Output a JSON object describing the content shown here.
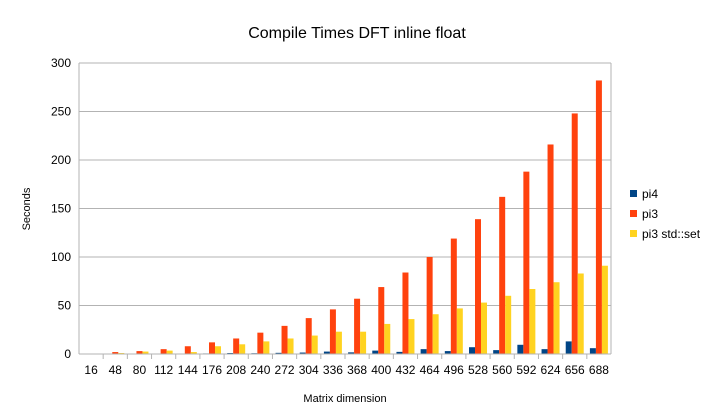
{
  "chart_data": {
    "type": "bar",
    "title": "Compile Times DFT inline float",
    "xlabel": "Matrix dimension",
    "ylabel": "Seconds",
    "ylim": [
      0,
      300
    ],
    "yticks": [
      0,
      50,
      100,
      150,
      200,
      250,
      300
    ],
    "grid": "horizontal",
    "legend_position": "right",
    "categories": [
      "16",
      "48",
      "80",
      "112",
      "144",
      "176",
      "208",
      "240",
      "272",
      "304",
      "336",
      "368",
      "400",
      "432",
      "464",
      "496",
      "528",
      "560",
      "592",
      "624",
      "656",
      "688"
    ],
    "series": [
      {
        "name": "pi4",
        "color": "#004586",
        "values": [
          0.1,
          0.2,
          0.3,
          0.4,
          0.5,
          0.6,
          1.0,
          0.8,
          1.2,
          1.5,
          2.5,
          1.7,
          3.5,
          2.2,
          5.0,
          3.0,
          7.0,
          4.0,
          9.5,
          5.0,
          13.0,
          6.0
        ]
      },
      {
        "name": "pi3",
        "color": "#ff420e",
        "values": [
          0.5,
          2,
          3,
          5,
          8,
          12,
          16,
          22,
          29,
          37,
          46,
          57,
          69,
          84,
          100,
          119,
          139,
          162,
          188,
          216,
          248,
          282
        ]
      },
      {
        "name": "pi3 std::set",
        "color": "#ffd320",
        "values": [
          0.3,
          1,
          2.5,
          3.5,
          2,
          8,
          10,
          13,
          16,
          19,
          23,
          23,
          31,
          36,
          41,
          47,
          53,
          60,
          67,
          74,
          83,
          91
        ]
      }
    ]
  }
}
